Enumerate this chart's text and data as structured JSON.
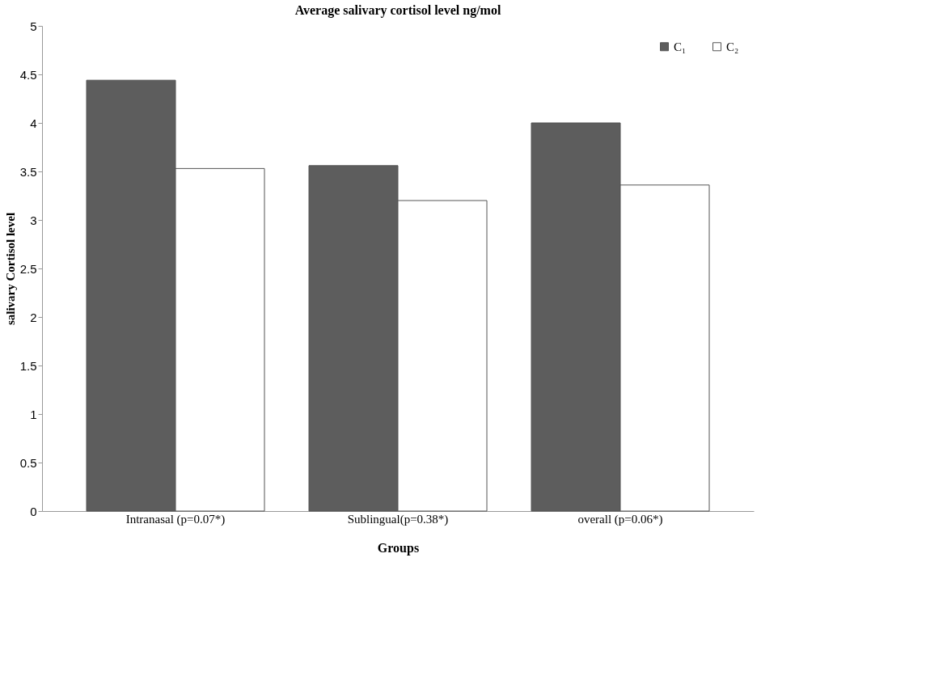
{
  "chart_data": {
    "type": "bar",
    "title": "Average salivary cortisol level ng/mol",
    "xlabel": "Groups",
    "ylabel": "salivary Cortisol level",
    "categories": [
      "Intranasal (p=0.07*)",
      "Sublingual(p=0.38*)",
      "overall (p=0.06*)"
    ],
    "series": [
      {
        "name": "C₁",
        "color": "#5d5d5d",
        "values": [
          4.44,
          3.56,
          4.0
        ]
      },
      {
        "name": "C₂",
        "color": "#ffffff",
        "values": [
          3.53,
          3.2,
          3.36
        ]
      }
    ],
    "ylim": [
      0,
      5
    ],
    "yticks": [
      0,
      0.5,
      1,
      1.5,
      2,
      2.5,
      3,
      3.5,
      4,
      4.5,
      5
    ],
    "grid": false,
    "legend": "top right"
  }
}
